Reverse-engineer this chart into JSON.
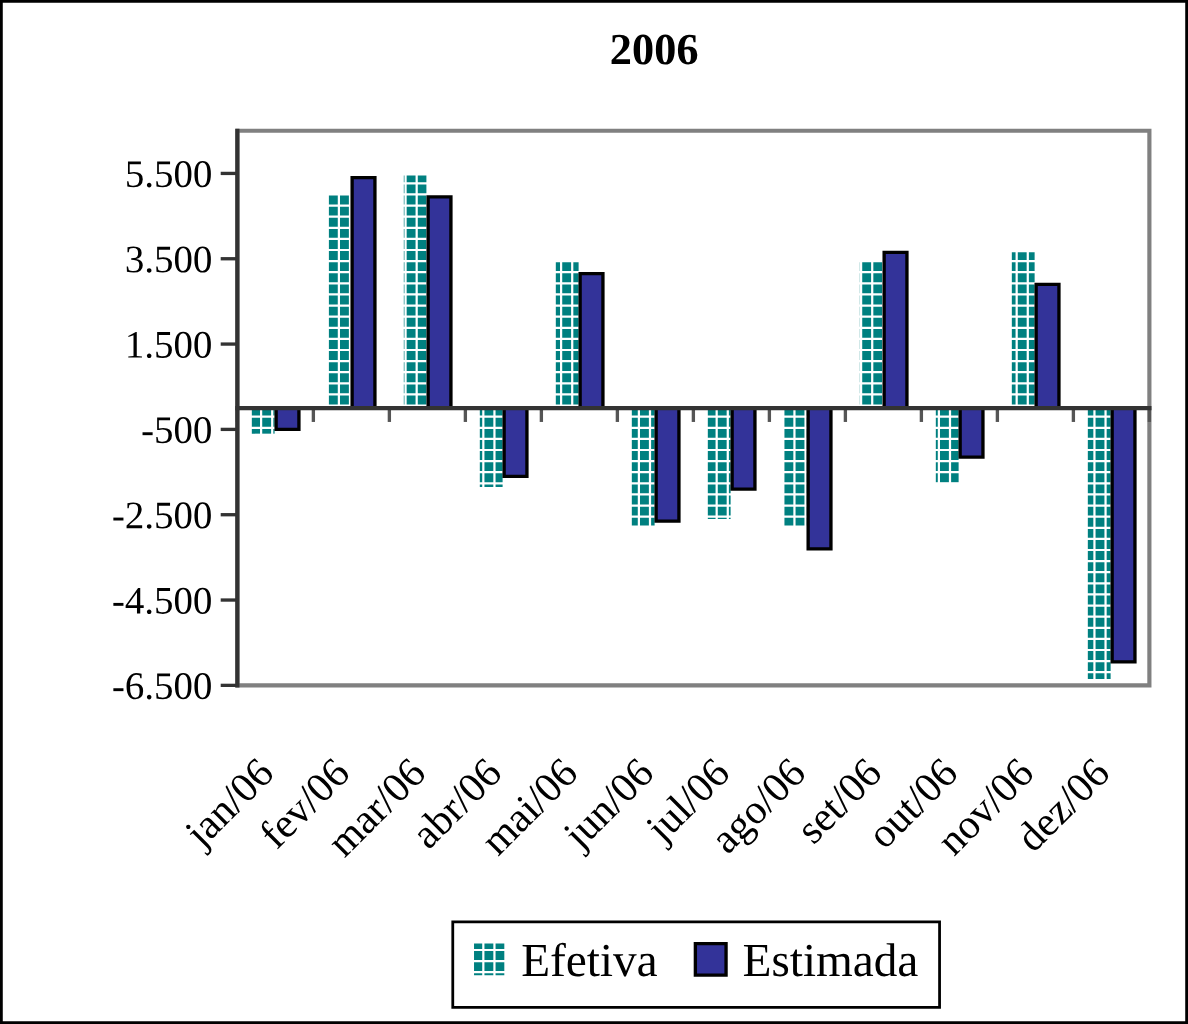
{
  "chart_data": {
    "type": "bar",
    "title": "2006",
    "categories": [
      "jan/06",
      "fev/06",
      "mar/06",
      "abr/06",
      "mai/06",
      "jun/06",
      "jul/06",
      "ago/06",
      "set/06",
      "out/06",
      "nov/06",
      "dez/06"
    ],
    "series": [
      {
        "name": "Efetiva",
        "color": "#008080",
        "values": [
          -600,
          5000,
          5450,
          -1850,
          3450,
          -2750,
          -2600,
          -2750,
          3450,
          -1750,
          3650,
          -6350
        ]
      },
      {
        "name": "Estimada",
        "color": "#333399",
        "values": [
          -500,
          5400,
          4950,
          -1600,
          3150,
          -2650,
          -1900,
          -3300,
          3650,
          -1150,
          2900,
          -5950
        ]
      }
    ],
    "ylim": [
      -6500,
      6500
    ],
    "yticks": [
      {
        "value": -6500,
        "label": "-6.500"
      },
      {
        "value": -4500,
        "label": "-4.500"
      },
      {
        "value": -2500,
        "label": "-2.500"
      },
      {
        "value": -500,
        "label": "-500"
      },
      {
        "value": 1500,
        "label": "1.500"
      },
      {
        "value": 3500,
        "label": "3.500"
      },
      {
        "value": 5500,
        "label": "5.500"
      }
    ],
    "legend": "bottom"
  }
}
